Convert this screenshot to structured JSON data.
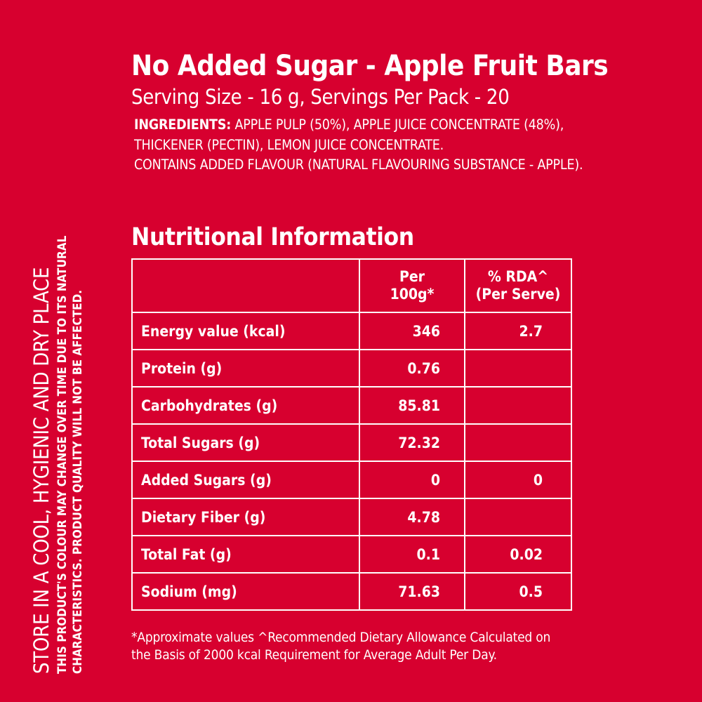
{
  "side": {
    "main": "STORE IN A COOL, HYGIENIC AND DRY PLACE",
    "sub_line1": "THIS PRODUCT'S COLOUR MAY CHANGE OVER TIME DUE TO ITS NATURAL",
    "sub_line2": "CHARACTERISTICS. PRODUCT QUALITY WILL NOT BE AFFECTED."
  },
  "product": {
    "title": "No Added Sugar - Apple Fruit Bars",
    "serving": "Serving Size  - 16 g, Servings Per Pack - 20"
  },
  "ingredients": {
    "label": "INGREDIENTS:",
    "line1": " APPLE PULP (50%), APPLE JUICE CONCENTRATE (48%),",
    "line2": "THICKENER (PECTIN), LEMON JUICE CONCENTRATE.",
    "line3": "CONTAINS ADDED FLAVOUR (NATURAL FLAVOURING SUBSTANCE - APPLE)."
  },
  "nutrition": {
    "title": "Nutritional Information",
    "headers": {
      "per_line1": "Per",
      "per_line2": "100g*",
      "rda_line1": "% RDA^",
      "rda_line2": "(Per Serve)"
    },
    "rows": [
      {
        "name": "Energy value (kcal)",
        "per100": "346",
        "rda": "2.7"
      },
      {
        "name": "Protein (g)",
        "per100": "0.76",
        "rda": ""
      },
      {
        "name": "Carbohydrates (g)",
        "per100": "85.81",
        "rda": ""
      },
      {
        "name": "Total Sugars (g)",
        "per100": "72.32",
        "rda": ""
      },
      {
        "name": "Added Sugars (g)",
        "per100": "0",
        "rda": "0"
      },
      {
        "name": "Dietary Fiber (g)",
        "per100": "4.78",
        "rda": ""
      },
      {
        "name": "Total Fat (g)",
        "per100": "0.1",
        "rda": "0.02"
      },
      {
        "name": "Sodium (mg)",
        "per100": "71.63",
        "rda": "0.5"
      }
    ]
  },
  "footnote": {
    "line1": "*Approximate values ^Recommended Dietary Allowance Calculated on",
    "line2": "the Basis of 2000 kcal Requirement for Average Adult Per Day."
  },
  "colors": {
    "background": "#d7002f",
    "text": "#ffffff"
  }
}
